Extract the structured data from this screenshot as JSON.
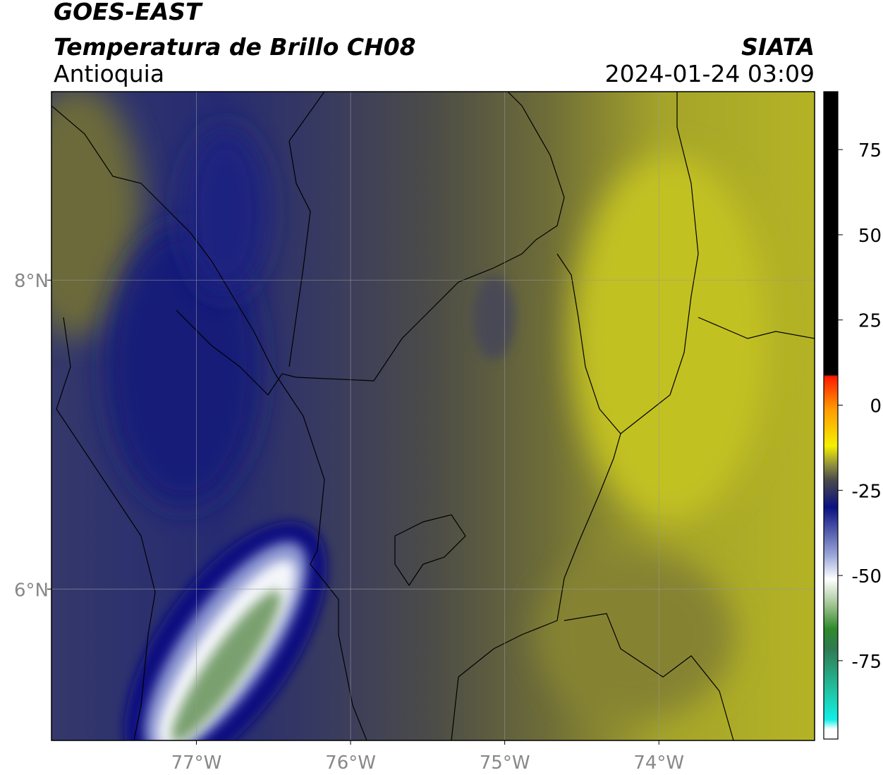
{
  "header": {
    "title": "GOES-EAST",
    "subtitle": "Temperatura de Brillo CH08",
    "region": "Antioquia",
    "source": "SIATA",
    "datetime": "2024-01-24 03:09"
  },
  "map": {
    "xlim": [
      -77.94,
      -72.99
    ],
    "ylim": [
      5.02,
      9.22
    ],
    "xticks": [
      {
        "value": -77,
        "label": "77°W"
      },
      {
        "value": -76,
        "label": "76°W"
      },
      {
        "value": -75,
        "label": "75°W"
      },
      {
        "value": -74,
        "label": "74°W"
      }
    ],
    "yticks": [
      {
        "value": 6,
        "label": "6°N"
      },
      {
        "value": 8,
        "label": "8°N"
      }
    ],
    "grid": true
  },
  "colorbar": {
    "range": [
      -98,
      92
    ],
    "ticks": [
      -75,
      -50,
      -25,
      0,
      25,
      50,
      75
    ]
  }
}
